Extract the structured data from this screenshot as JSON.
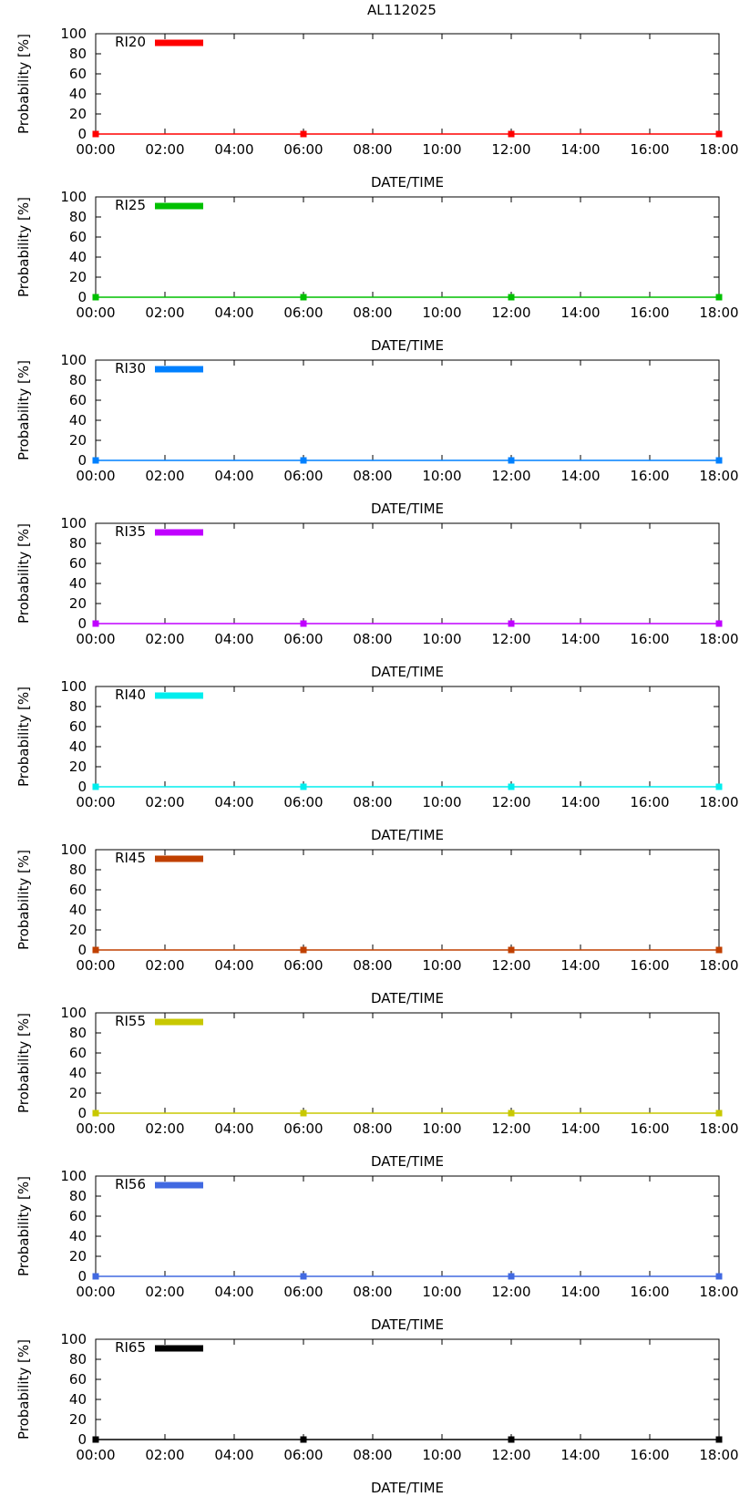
{
  "title": "AL112025",
  "chart_data": [
    {
      "type": "line",
      "legend_label": "RI20",
      "color": "#ff0000",
      "x": [
        "00:00",
        "06:00",
        "12:00",
        "18:00"
      ],
      "values": [
        0,
        0,
        0,
        0
      ],
      "xlabel": "DATE/TIME",
      "ylabel": "Probability [%]",
      "ylim": [
        0,
        100
      ],
      "yticks": [
        "0",
        "20",
        "40",
        "60",
        "80",
        "100"
      ],
      "xticks": [
        "00:00",
        "02:00",
        "04:00",
        "06:00",
        "08:00",
        "10:00",
        "12:00",
        "14:00",
        "16:00",
        "18:00"
      ],
      "legend_position": "top-left",
      "grid": false
    },
    {
      "type": "line",
      "legend_label": "RI25",
      "color": "#00c000",
      "x": [
        "00:00",
        "06:00",
        "12:00",
        "18:00"
      ],
      "values": [
        0,
        0,
        0,
        0
      ],
      "xlabel": "DATE/TIME",
      "ylabel": "Probability [%]",
      "ylim": [
        0,
        100
      ],
      "yticks": [
        "0",
        "20",
        "40",
        "60",
        "80",
        "100"
      ],
      "xticks": [
        "00:00",
        "02:00",
        "04:00",
        "06:00",
        "08:00",
        "10:00",
        "12:00",
        "14:00",
        "16:00",
        "18:00"
      ],
      "legend_position": "top-left",
      "grid": false
    },
    {
      "type": "line",
      "legend_label": "RI30",
      "color": "#0080ff",
      "x": [
        "00:00",
        "06:00",
        "12:00",
        "18:00"
      ],
      "values": [
        0,
        0,
        0,
        0
      ],
      "xlabel": "DATE/TIME",
      "ylabel": "Probability [%]",
      "ylim": [
        0,
        100
      ],
      "yticks": [
        "0",
        "20",
        "40",
        "60",
        "80",
        "100"
      ],
      "xticks": [
        "00:00",
        "02:00",
        "04:00",
        "06:00",
        "08:00",
        "10:00",
        "12:00",
        "14:00",
        "16:00",
        "18:00"
      ],
      "legend_position": "top-left",
      "grid": false
    },
    {
      "type": "line",
      "legend_label": "RI35",
      "color": "#c000ff",
      "x": [
        "00:00",
        "06:00",
        "12:00",
        "18:00"
      ],
      "values": [
        0,
        0,
        0,
        0
      ],
      "xlabel": "DATE/TIME",
      "ylabel": "Probability [%]",
      "ylim": [
        0,
        100
      ],
      "yticks": [
        "0",
        "20",
        "40",
        "60",
        "80",
        "100"
      ],
      "xticks": [
        "00:00",
        "02:00",
        "04:00",
        "06:00",
        "08:00",
        "10:00",
        "12:00",
        "14:00",
        "16:00",
        "18:00"
      ],
      "legend_position": "top-left",
      "grid": false
    },
    {
      "type": "line",
      "legend_label": "RI40",
      "color": "#00eeee",
      "x": [
        "00:00",
        "06:00",
        "12:00",
        "18:00"
      ],
      "values": [
        0,
        0,
        0,
        0
      ],
      "xlabel": "DATE/TIME",
      "ylabel": "Probability [%]",
      "ylim": [
        0,
        100
      ],
      "yticks": [
        "0",
        "20",
        "40",
        "60",
        "80",
        "100"
      ],
      "xticks": [
        "00:00",
        "02:00",
        "04:00",
        "06:00",
        "08:00",
        "10:00",
        "12:00",
        "14:00",
        "16:00",
        "18:00"
      ],
      "legend_position": "top-left",
      "grid": false
    },
    {
      "type": "line",
      "legend_label": "RI45",
      "color": "#c04000",
      "x": [
        "00:00",
        "06:00",
        "12:00",
        "18:00"
      ],
      "values": [
        0,
        0,
        0,
        0
      ],
      "xlabel": "DATE/TIME",
      "ylabel": "Probability [%]",
      "ylim": [
        0,
        100
      ],
      "yticks": [
        "0",
        "20",
        "40",
        "60",
        "80",
        "100"
      ],
      "xticks": [
        "00:00",
        "02:00",
        "04:00",
        "06:00",
        "08:00",
        "10:00",
        "12:00",
        "14:00",
        "16:00",
        "18:00"
      ],
      "legend_position": "top-left",
      "grid": false
    },
    {
      "type": "line",
      "legend_label": "RI55",
      "color": "#c8c800",
      "x": [
        "00:00",
        "06:00",
        "12:00",
        "18:00"
      ],
      "values": [
        0,
        0,
        0,
        0
      ],
      "xlabel": "DATE/TIME",
      "ylabel": "Probability [%]",
      "ylim": [
        0,
        100
      ],
      "yticks": [
        "0",
        "20",
        "40",
        "60",
        "80",
        "100"
      ],
      "xticks": [
        "00:00",
        "02:00",
        "04:00",
        "06:00",
        "08:00",
        "10:00",
        "12:00",
        "14:00",
        "16:00",
        "18:00"
      ],
      "legend_position": "top-left",
      "grid": false
    },
    {
      "type": "line",
      "legend_label": "RI56",
      "color": "#4169e1",
      "x": [
        "00:00",
        "06:00",
        "12:00",
        "18:00"
      ],
      "values": [
        0,
        0,
        0,
        0
      ],
      "xlabel": "DATE/TIME",
      "ylabel": "Probability [%]",
      "ylim": [
        0,
        100
      ],
      "yticks": [
        "0",
        "20",
        "40",
        "60",
        "80",
        "100"
      ],
      "xticks": [
        "00:00",
        "02:00",
        "04:00",
        "06:00",
        "08:00",
        "10:00",
        "12:00",
        "14:00",
        "16:00",
        "18:00"
      ],
      "legend_position": "top-left",
      "grid": false
    },
    {
      "type": "line",
      "legend_label": "RI65",
      "color": "#000000",
      "x": [
        "00:00",
        "06:00",
        "12:00",
        "18:00"
      ],
      "values": [
        0,
        0,
        0,
        0
      ],
      "xlabel": "DATE/TIME",
      "ylabel": "Probability [%]",
      "ylim": [
        0,
        100
      ],
      "yticks": [
        "0",
        "20",
        "40",
        "60",
        "80",
        "100"
      ],
      "xticks": [
        "00:00",
        "02:00",
        "04:00",
        "06:00",
        "08:00",
        "10:00",
        "12:00",
        "14:00",
        "16:00",
        "18:00"
      ],
      "legend_position": "top-left",
      "grid": false
    }
  ]
}
